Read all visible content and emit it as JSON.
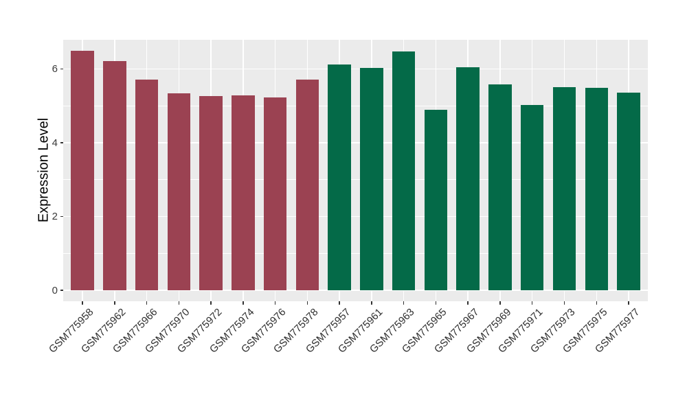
{
  "figure": {
    "background": "#FFFFFF"
  },
  "chart_data": {
    "type": "bar",
    "title": "",
    "xlabel": "",
    "ylabel": "Expression Level",
    "categories": [
      "GSM775958",
      "GSM775962",
      "GSM775966",
      "GSM775970",
      "GSM775972",
      "GSM775974",
      "GSM775976",
      "GSM775978",
      "GSM775957",
      "GSM775961",
      "GSM775963",
      "GSM775965",
      "GSM775967",
      "GSM775969",
      "GSM775971",
      "GSM775973",
      "GSM775975",
      "GSM775977"
    ],
    "values": [
      6.49,
      6.22,
      5.71,
      5.34,
      5.26,
      5.29,
      5.22,
      5.72,
      6.12,
      6.02,
      6.47,
      4.89,
      6.04,
      5.58,
      5.02,
      5.5,
      5.48,
      5.35
    ],
    "group_of_bar": [
      0,
      0,
      0,
      0,
      0,
      0,
      0,
      0,
      1,
      1,
      1,
      1,
      1,
      1,
      1,
      1,
      1,
      1
    ],
    "group_colors": [
      "#9B4252",
      "#046A48"
    ],
    "yticks": [
      0,
      2,
      4,
      6
    ],
    "yticks_minor": [
      1,
      3,
      5
    ],
    "ylim": [
      -0.3,
      6.79
    ],
    "grid": "horizontal major+minor, vertical major at bar centers",
    "legend_position": "none",
    "x_tick_rotation_deg": 45,
    "panel_background": "#EBEBEB",
    "gridline_color": "#FFFFFF",
    "axis_text_color": "#3A3A3A",
    "axis_title_color": "#000000"
  }
}
